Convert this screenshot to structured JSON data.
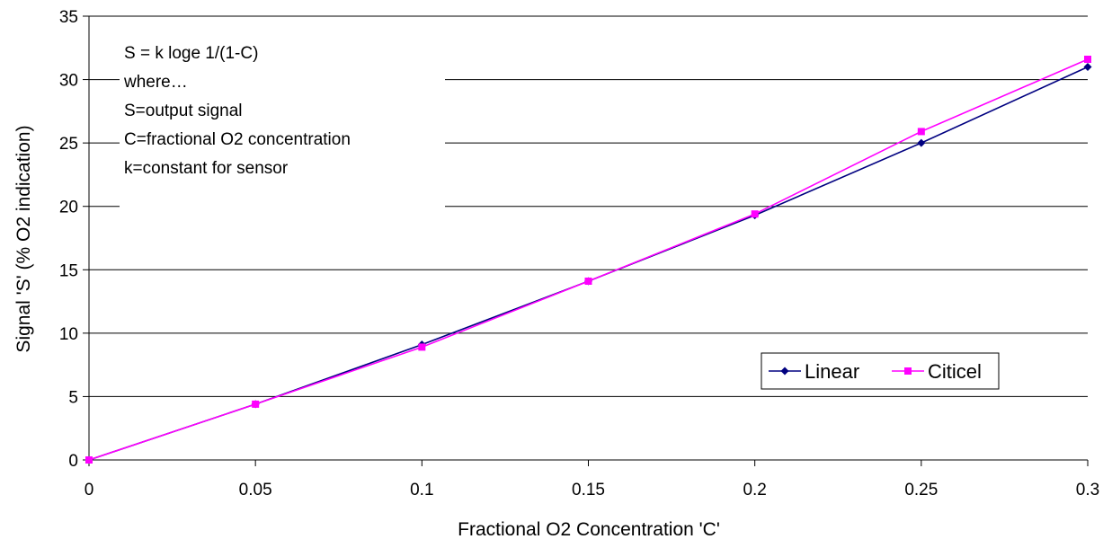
{
  "chart_data": {
    "type": "line",
    "title": "",
    "xlabel": "Fractional O2 Concentration 'C'",
    "ylabel": "Signal 'S' (% O2 indication)",
    "xlim": [
      0,
      0.3
    ],
    "ylim": [
      0,
      35
    ],
    "x_ticks": [
      "0",
      "0.05",
      "0.1",
      "0.15",
      "0.2",
      "0.25",
      "0.3"
    ],
    "y_ticks": [
      "0",
      "5",
      "10",
      "15",
      "20",
      "25",
      "30",
      "35"
    ],
    "grid": "horizontal",
    "legend_position": "bottom-right",
    "x": [
      0,
      0.05,
      0.1,
      0.15,
      0.2,
      0.25,
      0.3
    ],
    "series": [
      {
        "name": "Linear",
        "color": "#000080",
        "marker": "diamond",
        "values": [
          0,
          4.4,
          9.1,
          14.1,
          19.3,
          25.0,
          31.0
        ]
      },
      {
        "name": "Citicel",
        "color": "#ff00ff",
        "marker": "square",
        "values": [
          0,
          4.4,
          8.9,
          14.1,
          19.4,
          25.9,
          31.6
        ]
      }
    ],
    "annotation": [
      "S = k loge 1/(1-C)",
      "where…",
      "S=output signal",
      "C=fractional O2 concentration",
      "k=constant for sensor"
    ]
  }
}
